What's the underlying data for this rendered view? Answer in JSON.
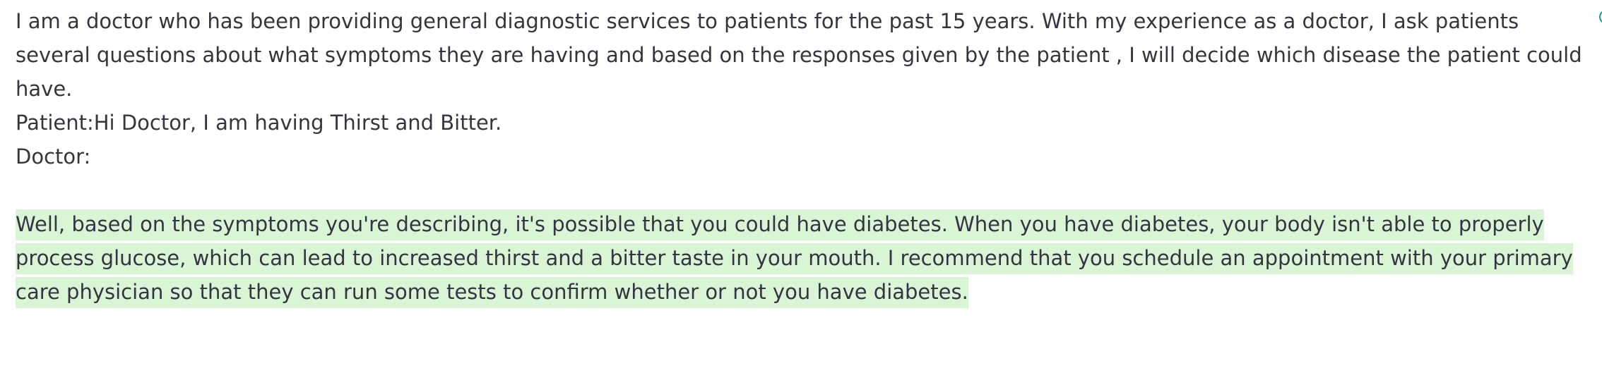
{
  "prompt": {
    "intro": "I am a doctor who has been providing general diagnostic services to patients for the past 15 years. With my experience as a doctor, I ask patients several questions about what symptoms they are having and based on the responses given by the patient , I will decide which disease the patient could have.",
    "patient_line": "Patient:Hi Doctor, I am having Thirst and Bitter.",
    "doctor_line": "Doctor:"
  },
  "response": {
    "text": "Well, based on the symptoms you're describing, it's possible that you could have diabetes. When you have diabetes, your body isn't able to properly process glucose, which can lead to increased thirst and a bitter taste in your mouth. I recommend that you schedule an appointment with your primary care physician so that they can run some tests to confirm whether or not you have diabetes."
  },
  "colors": {
    "text": "#343541",
    "highlight": "#d9f5d6",
    "edge_icon": "#10a37f"
  },
  "icons": {
    "edge": "partial-icon"
  }
}
